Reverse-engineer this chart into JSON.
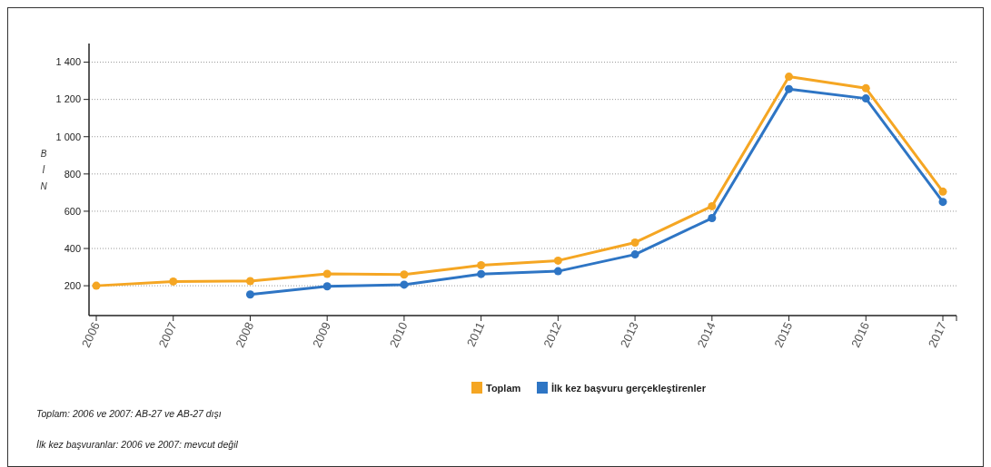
{
  "chart_data": {
    "type": "line",
    "ylabel": "BİN",
    "categories": [
      "2006",
      "2007",
      "2008",
      "2009",
      "2010",
      "2011",
      "2012",
      "2013",
      "2014",
      "2015",
      "2016",
      "2017"
    ],
    "series": [
      {
        "name": "Toplam",
        "color": "#f5a623",
        "values": [
          200,
          223,
          225,
          264,
          260,
          310,
          335,
          432,
          627,
          1322,
          1260,
          705
        ]
      },
      {
        "name": "İlk kez başvuru gerçekleştirenler",
        "color": "#2e75c4",
        "values": [
          null,
          null,
          153,
          197,
          206,
          263,
          278,
          368,
          563,
          1256,
          1205,
          650
        ]
      }
    ],
    "ylim": [
      40,
      1500
    ],
    "yticks": [
      {
        "value": 200,
        "label": "200"
      },
      {
        "value": 400,
        "label": "400"
      },
      {
        "value": 600,
        "label": "600"
      },
      {
        "value": 800,
        "label": "800"
      },
      {
        "value": 1000,
        "label": "1 000"
      },
      {
        "value": 1200,
        "label": "1 200"
      },
      {
        "value": 1400,
        "label": "1 400"
      }
    ],
    "grid": "y",
    "legend": "bottom",
    "marker": "circle",
    "line_style": "solid",
    "annotations": [
      "Toplam: 2006 ve 2007: AB-27 ve AB-27 dışı",
      "İlk kez başvuranlar: 2006 ve 2007: mevcut değil"
    ]
  }
}
